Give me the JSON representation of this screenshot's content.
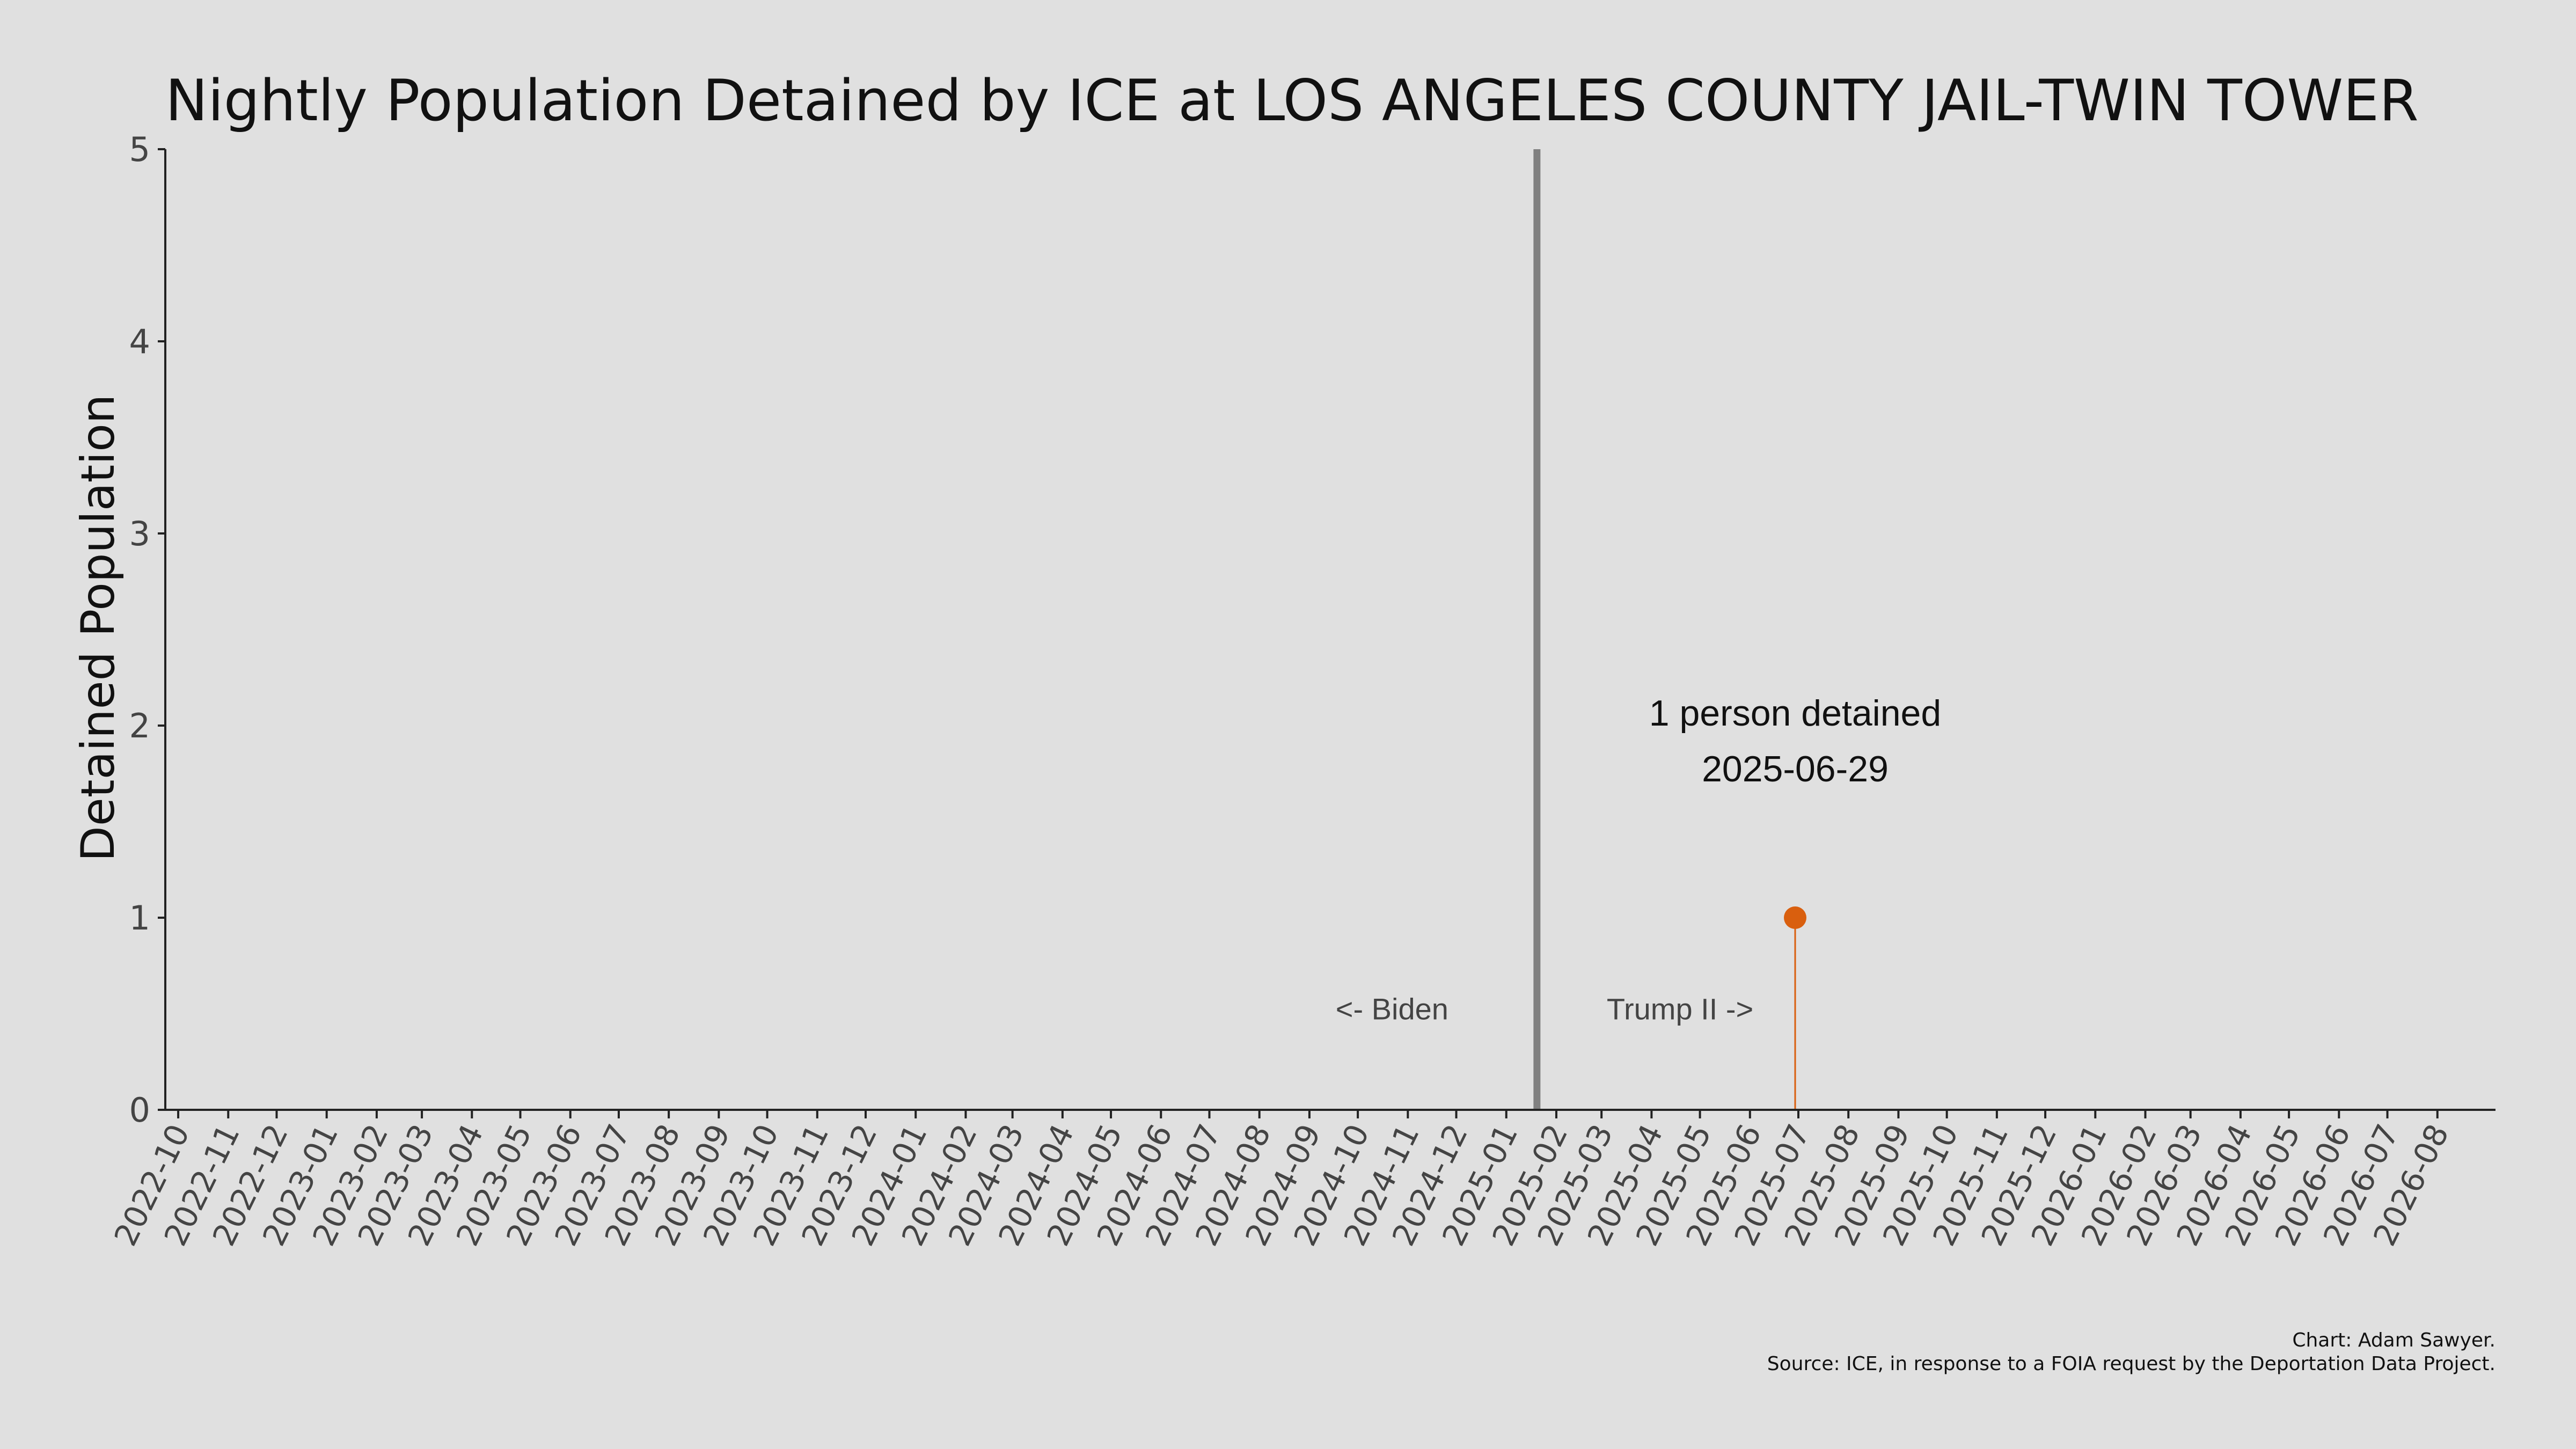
{
  "chart_data": {
    "type": "scatter",
    "title": "Nightly Population Detained by ICE at LOS ANGELES COUNTY JAIL-TWIN TOWER",
    "xlabel": "",
    "ylabel": "Detained Population",
    "ylim": [
      0,
      5
    ],
    "yticks": [
      "0",
      "1",
      "2",
      "3",
      "4",
      "5"
    ],
    "xlim": [
      "2022-09-23",
      "2026-09-06"
    ],
    "xticks": [
      "2022-10",
      "2022-11",
      "2022-12",
      "2023-01",
      "2023-02",
      "2023-03",
      "2023-04",
      "2023-05",
      "2023-06",
      "2023-07",
      "2023-08",
      "2023-09",
      "2023-10",
      "2023-11",
      "2023-12",
      "2024-01",
      "2024-02",
      "2024-03",
      "2024-04",
      "2024-05",
      "2024-06",
      "2024-07",
      "2024-08",
      "2024-09",
      "2024-10",
      "2024-11",
      "2024-12",
      "2025-01",
      "2025-02",
      "2025-03",
      "2025-04",
      "2025-05",
      "2025-06",
      "2025-07",
      "2025-08",
      "2025-09",
      "2025-10",
      "2025-11",
      "2025-12",
      "2026-01",
      "2026-02",
      "2026-03",
      "2026-04",
      "2026-05",
      "2026-06",
      "2026-07",
      "2026-08"
    ],
    "grid": false,
    "series": [
      {
        "points": [
          {
            "x": "2025-06-29",
            "y": 1
          }
        ],
        "color": "#d95f0e"
      }
    ],
    "reference_line": {
      "x": "2025-01-20",
      "color": "#808080"
    },
    "era_labels": {
      "left": "<- Biden",
      "right": "Trump II ->"
    },
    "annotation": {
      "line1": "1 person detained",
      "line2": "2025-06-29"
    },
    "credits": {
      "line1": "Chart: Adam Sawyer.",
      "line2": "Source: ICE, in response to a FOIA request by the Deportation Data Project."
    }
  }
}
